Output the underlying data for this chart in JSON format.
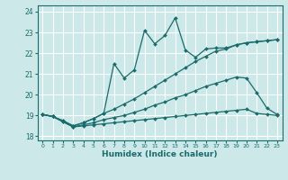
{
  "xlabel": "Humidex (Indice chaleur)",
  "bg_color": "#cce8e8",
  "grid_color": "#ffffff",
  "line_color": "#1a6b6b",
  "xlim": [
    -0.5,
    23.5
  ],
  "ylim": [
    17.8,
    24.3
  ],
  "xticks": [
    0,
    1,
    2,
    3,
    4,
    5,
    6,
    7,
    8,
    9,
    10,
    11,
    12,
    13,
    14,
    15,
    16,
    17,
    18,
    19,
    20,
    21,
    22,
    23
  ],
  "yticks": [
    18,
    19,
    20,
    21,
    22,
    23,
    24
  ],
  "lines": [
    {
      "x": [
        0,
        1,
        2,
        3,
        4,
        5,
        6,
        7,
        8,
        9,
        10,
        11,
        12,
        13,
        14,
        15,
        16,
        17,
        18,
        19,
        20,
        21,
        22,
        23
      ],
      "y": [
        19.05,
        18.95,
        18.7,
        18.45,
        18.5,
        18.55,
        18.6,
        18.65,
        18.7,
        18.75,
        18.8,
        18.85,
        18.9,
        18.95,
        19.0,
        19.05,
        19.1,
        19.15,
        19.2,
        19.25,
        19.3,
        19.1,
        19.05,
        19.0
      ],
      "marker": "D",
      "markersize": 2.0,
      "linewidth": 0.9
    },
    {
      "x": [
        0,
        1,
        2,
        3,
        4,
        5,
        6,
        7,
        8,
        9,
        10,
        11,
        12,
        13,
        14,
        15,
        16,
        17,
        18,
        19,
        20,
        21,
        22,
        23
      ],
      "y": [
        19.05,
        18.95,
        18.7,
        18.45,
        18.55,
        18.65,
        18.8,
        18.9,
        19.0,
        19.15,
        19.3,
        19.5,
        19.65,
        19.85,
        20.0,
        20.2,
        20.4,
        20.55,
        20.7,
        20.85,
        20.8,
        20.1,
        19.35,
        19.05
      ],
      "marker": "D",
      "markersize": 2.0,
      "linewidth": 0.9
    },
    {
      "x": [
        0,
        1,
        2,
        3,
        4,
        5,
        6,
        7,
        8,
        9,
        10,
        11,
        12,
        13,
        14,
        15,
        16,
        17,
        18,
        19,
        20,
        21,
        22,
        23
      ],
      "y": [
        19.05,
        18.95,
        18.75,
        18.5,
        18.65,
        18.85,
        19.1,
        19.3,
        19.55,
        19.8,
        20.1,
        20.4,
        20.7,
        21.0,
        21.3,
        21.6,
        21.85,
        22.1,
        22.2,
        22.4,
        22.5,
        22.55,
        22.6,
        22.65
      ],
      "marker": "D",
      "markersize": 2.0,
      "linewidth": 0.9
    },
    {
      "x": [
        0,
        1,
        2,
        3,
        4,
        5,
        6,
        7,
        8,
        9,
        10,
        11,
        12,
        13,
        14,
        15,
        16,
        17,
        18,
        19,
        20,
        21,
        22,
        23
      ],
      "y": [
        19.05,
        18.95,
        18.75,
        18.5,
        18.65,
        18.85,
        19.1,
        21.5,
        20.8,
        21.2,
        23.1,
        22.45,
        22.85,
        23.7,
        22.15,
        21.8,
        22.2,
        22.25,
        22.25,
        22.4,
        22.5,
        22.55,
        22.6,
        22.65
      ],
      "marker": "D",
      "markersize": 2.0,
      "linewidth": 0.9
    }
  ]
}
